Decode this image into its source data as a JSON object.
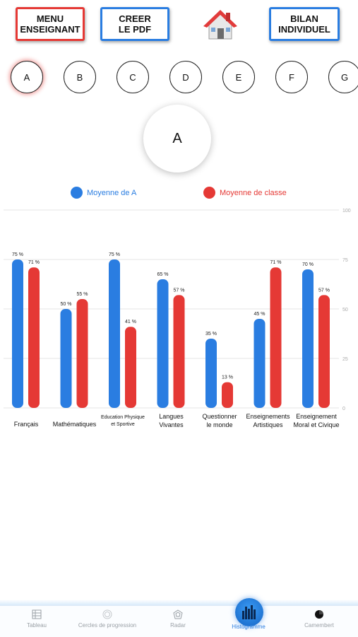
{
  "header": {
    "menu_label": "MENU\nENSEIGNANT",
    "pdf_label": "CREER\nLE PDF",
    "bilan_label": "BILAN\nINDIVIDUEL",
    "home_icon": "home-icon"
  },
  "students": [
    "A",
    "B",
    "C",
    "D",
    "E",
    "F",
    "G"
  ],
  "selected_student": "A",
  "legend": {
    "student_label": "Moyenne de A",
    "class_label": "Moyenne de classe"
  },
  "colors": {
    "student": "#2a7de1",
    "class": "#e53935",
    "menu_border": "#e53935",
    "pdf_border": "#2a7de1"
  },
  "chart_data": {
    "type": "bar",
    "categories": [
      "Français",
      "Mathématiques",
      "Education Physique\net Sportive",
      "Langues\nVivantes",
      "Questionner\nle monde",
      "Enseignements\nArtistiques",
      "Enseignement\nMoral et Civique"
    ],
    "series": [
      {
        "name": "Moyenne de A",
        "values": [
          75,
          50,
          75,
          65,
          35,
          45,
          70
        ],
        "labels": [
          "75 %",
          "50 %",
          "75 %",
          "65 %",
          "35 %",
          "45 %",
          "70 %"
        ]
      },
      {
        "name": "Moyenne de classe",
        "values": [
          71,
          55,
          41,
          57,
          13,
          71,
          57
        ],
        "labels": [
          "71 %",
          "55 %",
          "41 %",
          "57 %",
          "13 %",
          "71 %",
          "57 %"
        ]
      }
    ],
    "ylim": [
      0,
      100
    ],
    "yticks": [
      0,
      25,
      50,
      75,
      100
    ],
    "ytick_labels": [
      "0",
      "25",
      "50",
      "75",
      "100"
    ],
    "grid": true,
    "legend_position": "top"
  },
  "tabs": [
    {
      "label": "Tableau",
      "icon": "table-icon",
      "active": false
    },
    {
      "label": "Cercles de progression",
      "icon": "progress-circles-icon",
      "active": false
    },
    {
      "label": "Radar",
      "icon": "radar-icon",
      "active": false
    },
    {
      "label": "Histogramme",
      "icon": "histogram-icon",
      "active": true
    },
    {
      "label": "Camembert",
      "icon": "pie-chart-icon",
      "active": false
    }
  ]
}
